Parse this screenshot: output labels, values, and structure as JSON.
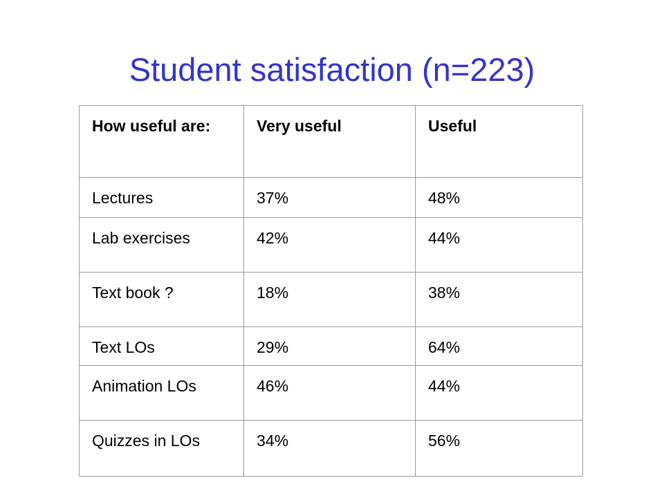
{
  "slide": {
    "title": "Student satisfaction (n=223)"
  },
  "table": {
    "headers": [
      "How useful are:",
      "Very useful",
      "Useful"
    ],
    "rows": [
      [
        "Lectures",
        "37%",
        "48%"
      ],
      [
        "Lab exercises",
        "42%",
        "44%"
      ],
      [
        "Text book ?",
        "18%",
        "38%"
      ],
      [
        "Text LOs",
        "29%",
        "64%"
      ],
      [
        "Animation LOs",
        "46%",
        "44%"
      ],
      [
        "Quizzes in LOs",
        "34%",
        "56%"
      ]
    ]
  },
  "colors": {
    "title": "#3333cc",
    "text": "#000000",
    "border": "#9a9a9a",
    "background": "#ffffff"
  }
}
